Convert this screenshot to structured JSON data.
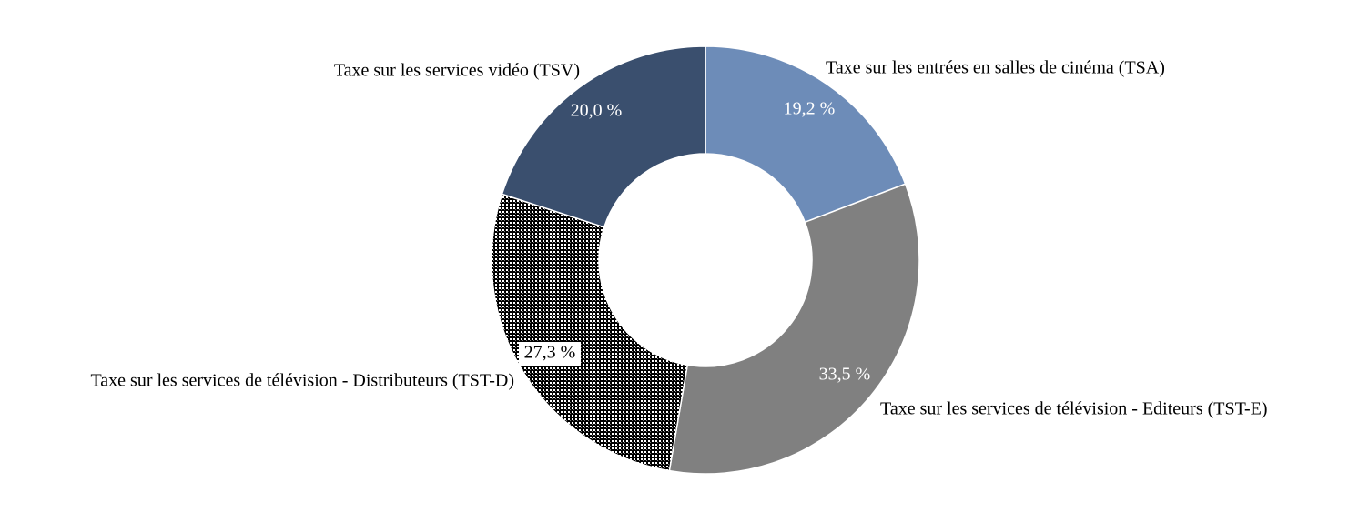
{
  "chart_data": {
    "type": "donut",
    "categories": [
      "Taxe sur les entrées en salles de cinéma (TSA)",
      "Taxe sur les services de télévision - Editeurs (TST-E)",
      "Taxe sur les services de télévision - Distributeurs (TST-D)",
      "Taxe sur les services vidéo (TSV)"
    ],
    "values": [
      19.2,
      33.5,
      27.3,
      20.0
    ],
    "value_labels": [
      "19,2 %",
      "33,5 %",
      "27,3 %",
      "20,0 %"
    ],
    "colors": [
      "#6d8cb8",
      "#808080",
      "pattern",
      "#3a4f6e"
    ]
  }
}
